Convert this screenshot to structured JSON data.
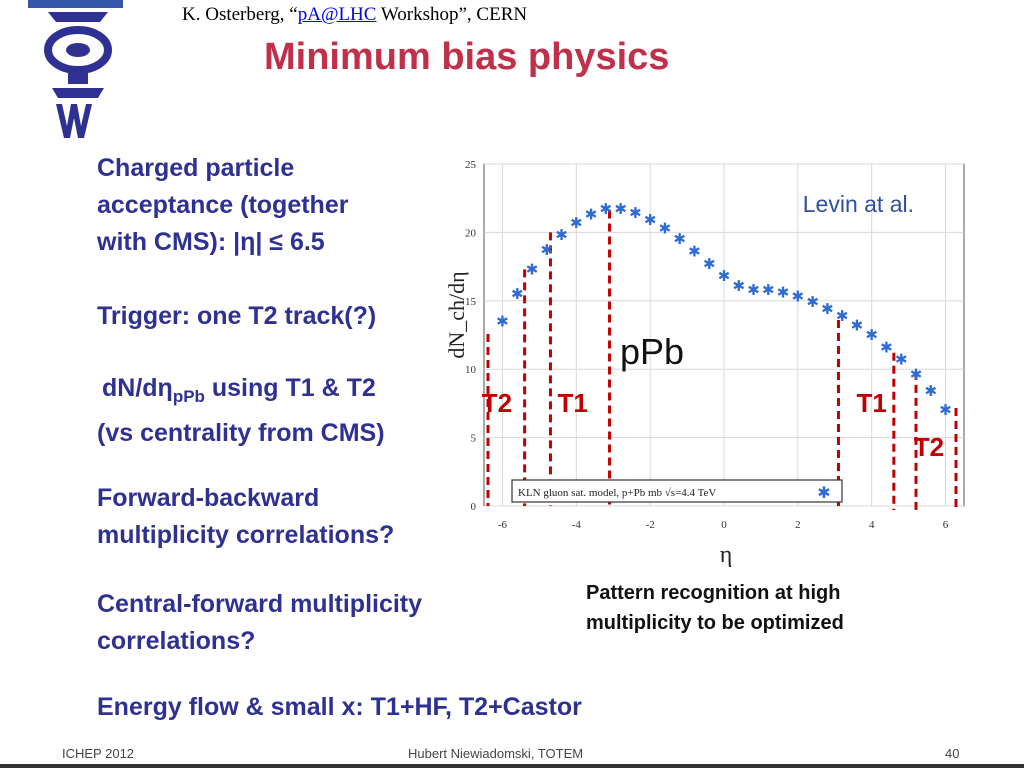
{
  "header": {
    "credit_prefix": "K. Osterberg, “",
    "credit_link": "pA@LHC",
    "credit_suffix": " Workshop”, CERN",
    "logo_text": "TOTEM"
  },
  "title": "Minimum bias physics",
  "bullets": [
    {
      "lines": [
        "Charged particle",
        "acceptance (together",
        "with CMS): |η| ≤ 6.5"
      ]
    },
    {
      "lines": [
        "Trigger: one T2 track(?)"
      ]
    },
    {
      "line1_pre": "dN/dη",
      "line1_sub": "pPb",
      "line1_post": " using T1 & T2",
      "line2": "(vs centrality from CMS)"
    },
    {
      "lines": [
        "Forward-backward",
        "multiplicity correlations?"
      ]
    },
    {
      "lines": [
        "Central-forward multiplicity",
        "correlations?"
      ]
    },
    {
      "lines": [
        "Energy flow & small x: T1+HF, T2+Castor"
      ]
    }
  ],
  "caption": [
    "Pattern recognition at high",
    "multiplicity to be optimized"
  ],
  "footer": {
    "left": "ICHEP 2012",
    "center": "Hubert Niewiadomski, TOTEM",
    "right": "40"
  },
  "colors": {
    "title": "#c0304a",
    "bullet_text": "#2e3192",
    "series": "#2e6bd6",
    "detector_marks": "#c00000"
  },
  "chart_data": {
    "type": "scatter",
    "xlabel": "η",
    "ylabel": "dN_ch/dη",
    "xlim": [
      -6.5,
      6.5
    ],
    "ylim": [
      0,
      25
    ],
    "xticks": [
      -6,
      -4,
      -2,
      0,
      2,
      4,
      6
    ],
    "yticks": [
      0,
      5,
      10,
      15,
      20,
      25
    ],
    "grid": true,
    "annotation_model": "Levin at al.",
    "annotation_system": "pPb",
    "legend": "KLN gluon sat. model, p+Pb mb √s=4.4 TeV",
    "legend_position": "bottom",
    "series": [
      {
        "x": [
          -6.0,
          -5.6,
          -5.2,
          -4.8,
          -4.4,
          -4.0,
          -3.6,
          -3.2,
          -2.8,
          -2.4,
          -2.0,
          -1.6,
          -1.2,
          -0.8,
          -0.4,
          0.0,
          0.4,
          0.8,
          1.2,
          1.6,
          2.0,
          2.4,
          2.8,
          3.2,
          3.6,
          4.0,
          4.4,
          4.8,
          5.2,
          5.6,
          6.0
        ],
        "y": [
          13.5,
          15.5,
          17.3,
          18.7,
          19.8,
          20.7,
          21.3,
          21.7,
          21.7,
          21.4,
          20.9,
          20.3,
          19.5,
          18.6,
          17.7,
          16.8,
          16.1,
          15.8,
          15.8,
          15.6,
          15.3,
          14.9,
          14.4,
          13.9,
          13.2,
          12.5,
          11.6,
          10.7,
          9.6,
          8.4,
          7.0
        ]
      }
    ],
    "region_labels": [
      "T2",
      "T1",
      "T1",
      "T2"
    ],
    "region_boundaries_eta": [
      -6.5,
      -5.4,
      -4.7,
      -3.1,
      3.1,
      4.6,
      5.2,
      6.5
    ]
  }
}
